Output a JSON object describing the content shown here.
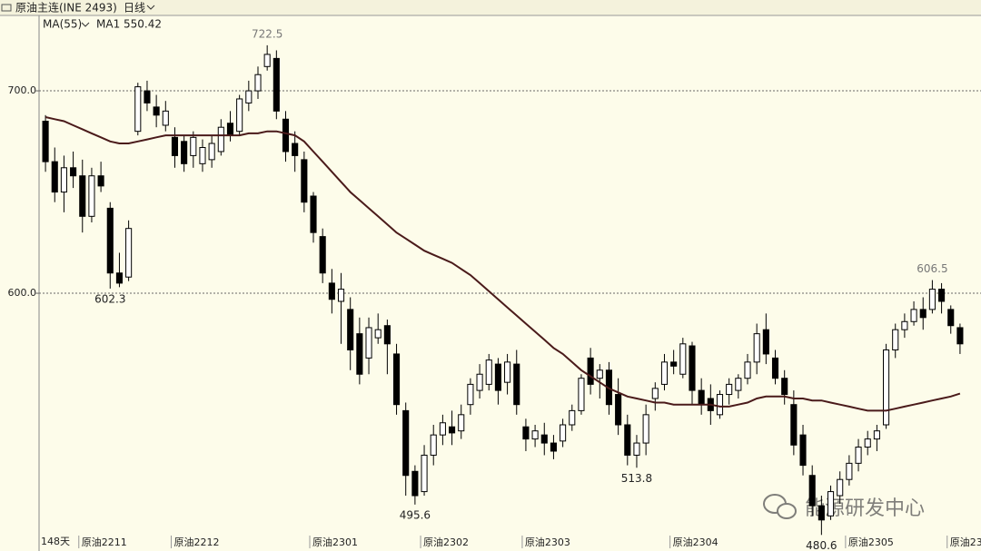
{
  "header": {
    "symbol": "原油主连(INE 2493)",
    "period": "日线",
    "indicator": "MA(55)",
    "watermark": "能源研发中心"
  },
  "chart_data": {
    "type": "candlestick",
    "ylim": [
      476.7,
      736.8
    ],
    "yticks": [
      {
        "value": 600,
        "label": "600.0"
      },
      {
        "value": 700,
        "label": "700.0"
      }
    ],
    "grid": true,
    "bars_count": "148天",
    "categories": [
      null,
      null,
      null,
      null,
      "原油2211",
      null,
      null,
      null,
      null,
      null,
      null,
      null,
      null,
      null,
      "原油2212",
      null,
      null,
      null,
      null,
      null,
      null,
      null,
      null,
      null,
      null,
      null,
      null,
      null,
      null,
      "原油2301",
      null,
      null,
      null,
      null,
      null,
      null,
      null,
      null,
      null,
      null,
      null,
      "原油2302",
      null,
      null,
      null,
      null,
      null,
      null,
      null,
      null,
      null,
      null,
      "原油2303",
      null,
      null,
      null,
      null,
      null,
      null,
      null,
      null,
      null,
      null,
      null,
      null,
      null,
      null,
      null,
      "原油2304",
      null,
      null,
      null,
      null,
      null,
      null,
      null,
      null,
      null,
      null,
      null,
      null,
      null,
      null,
      null,
      null,
      null,
      null,
      "原油2305",
      null,
      null,
      null,
      null,
      null,
      null,
      null,
      null,
      null,
      null,
      "原油23",
      null
    ],
    "series": [
      {
        "up_color": "#ffffff",
        "down_color": "#000000",
        "color": "#000000",
        "values": [
          [
            685,
            688,
            660,
            665
          ],
          [
            665,
            672,
            645,
            650
          ],
          [
            650,
            668,
            640,
            662
          ],
          [
            662,
            670,
            652,
            658
          ],
          [
            658,
            666,
            630,
            638
          ],
          [
            638,
            662,
            635,
            658
          ],
          [
            658,
            665,
            650,
            653
          ],
          [
            642,
            645,
            602.3,
            610
          ],
          [
            610,
            620,
            603,
            605
          ],
          [
            608,
            636,
            606,
            632
          ],
          [
            680,
            704,
            678,
            702
          ],
          [
            700,
            705,
            690,
            694
          ],
          [
            692,
            698,
            682,
            688
          ],
          [
            683,
            695,
            680,
            690
          ],
          [
            677,
            682,
            662,
            668
          ],
          [
            675,
            678,
            660,
            664
          ],
          [
            668,
            680,
            662,
            677
          ],
          [
            664,
            676,
            660,
            672
          ],
          [
            666,
            678,
            662,
            674
          ],
          [
            670,
            686,
            668,
            682
          ],
          [
            684,
            690,
            675,
            678
          ],
          [
            680,
            698,
            678,
            696
          ],
          [
            694,
            705,
            690,
            700
          ],
          [
            700,
            712,
            696,
            708
          ],
          [
            712,
            722.5,
            710,
            718
          ],
          [
            716,
            720,
            686,
            690
          ],
          [
            686,
            690,
            665,
            670
          ],
          [
            674,
            680,
            660,
            668
          ],
          [
            666,
            670,
            640,
            645
          ],
          [
            648,
            650,
            625,
            630
          ],
          [
            628,
            632,
            605,
            610
          ],
          [
            605,
            612,
            590,
            597
          ],
          [
            596,
            610,
            575,
            602
          ],
          [
            592,
            598,
            562,
            572
          ],
          [
            580,
            588,
            555,
            560
          ],
          [
            568,
            588,
            560,
            583
          ],
          [
            578,
            590,
            575,
            582
          ],
          [
            584,
            587,
            560,
            575
          ],
          [
            570,
            575,
            540,
            545
          ],
          [
            542,
            546,
            500,
            510
          ],
          [
            512,
            515,
            495.6,
            500
          ],
          [
            502,
            525,
            500,
            520
          ],
          [
            520,
            535,
            515,
            530
          ],
          [
            530,
            540,
            525,
            536
          ],
          [
            534,
            542,
            525,
            531
          ],
          [
            532,
            545,
            528,
            540
          ],
          [
            545,
            558,
            540,
            555
          ],
          [
            552,
            565,
            548,
            560
          ],
          [
            555,
            570,
            552,
            567
          ],
          [
            565,
            568,
            545,
            552
          ],
          [
            556,
            570,
            550,
            566
          ],
          [
            565,
            572,
            540,
            545
          ],
          [
            534,
            538,
            522,
            528
          ],
          [
            528,
            535,
            524,
            532
          ],
          [
            530,
            536,
            520,
            526
          ],
          [
            526,
            530,
            518,
            522
          ],
          [
            527,
            538,
            524,
            535
          ],
          [
            535,
            545,
            532,
            542
          ],
          [
            542,
            560,
            540,
            558
          ],
          [
            568,
            573,
            550,
            555
          ],
          [
            558,
            565,
            548,
            562
          ],
          [
            562,
            566,
            540,
            545
          ],
          [
            550,
            558,
            530,
            535
          ],
          [
            535,
            540,
            515,
            520
          ],
          [
            520,
            530,
            513.8,
            526
          ],
          [
            526,
            545,
            520,
            540
          ],
          [
            548,
            556,
            542,
            553
          ],
          [
            555,
            570,
            552,
            566
          ],
          [
            566,
            572,
            560,
            564
          ],
          [
            560,
            578,
            558,
            575
          ],
          [
            574,
            576,
            545,
            552
          ],
          [
            552,
            558,
            540,
            545
          ],
          [
            548,
            555,
            535,
            542
          ],
          [
            540,
            552,
            538,
            550
          ],
          [
            550,
            558,
            545,
            555
          ],
          [
            552,
            560,
            548,
            558
          ],
          [
            558,
            570,
            555,
            566
          ],
          [
            566,
            585,
            560,
            580
          ],
          [
            582,
            590,
            565,
            570
          ],
          [
            568,
            572,
            555,
            558
          ],
          [
            558,
            562,
            545,
            550
          ],
          [
            545,
            552,
            520,
            525
          ],
          [
            530,
            535,
            510,
            515
          ],
          [
            510,
            515,
            490,
            495
          ],
          [
            495,
            500,
            480.6,
            488
          ],
          [
            490,
            505,
            488,
            502
          ],
          [
            500,
            512,
            496,
            508
          ],
          [
            508,
            520,
            505,
            516
          ],
          [
            516,
            528,
            512,
            524
          ],
          [
            524,
            532,
            520,
            528
          ],
          [
            528,
            535,
            522,
            532
          ],
          [
            535,
            575,
            533,
            572
          ],
          [
            572,
            585,
            568,
            582
          ],
          [
            582,
            590,
            578,
            586
          ],
          [
            586,
            596,
            584,
            592
          ],
          [
            592,
            598,
            582,
            588
          ],
          [
            592,
            606.5,
            590,
            602
          ],
          [
            602,
            605,
            590,
            596
          ],
          [
            592,
            594,
            580,
            584
          ],
          [
            583,
            585,
            570,
            575
          ]
        ]
      },
      {
        "name": "MA1",
        "color": "#4a1a1a",
        "values": [
          687,
          686,
          685,
          683,
          681,
          679,
          677,
          675,
          674,
          674,
          675,
          676,
          677,
          678,
          678,
          678,
          678,
          678,
          678,
          678,
          678,
          678,
          679,
          679,
          680,
          680,
          679,
          678,
          675,
          670,
          665,
          660,
          655,
          650,
          646,
          642,
          638,
          634,
          630,
          627,
          624,
          621,
          619,
          617,
          615,
          612,
          609,
          605,
          601,
          597,
          593,
          589,
          585,
          581,
          577,
          573,
          570,
          566,
          562,
          559,
          556,
          553,
          551,
          549,
          548,
          547,
          546,
          546,
          545,
          545,
          545,
          545,
          545,
          544,
          544,
          545,
          546,
          548,
          549,
          549,
          549,
          548,
          548,
          547,
          547,
          546,
          545,
          544,
          543,
          542,
          542,
          542,
          543,
          544,
          545,
          546,
          547,
          548,
          549,
          550.42
        ]
      }
    ]
  }
}
